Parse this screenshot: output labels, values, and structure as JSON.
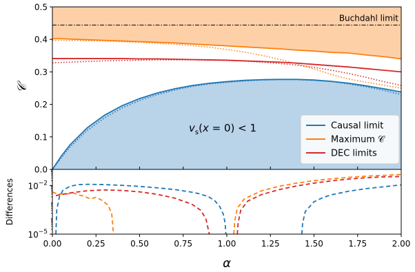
{
  "chart_data": [
    {
      "type": "area",
      "panel": "top",
      "xlabel": "",
      "ylabel": "𝒞",
      "xlim": [
        0,
        2
      ],
      "ylim": [
        0,
        0.5
      ],
      "yticks": [
        "0.0",
        "0.1",
        "0.2",
        "0.3",
        "0.4",
        "0.5"
      ],
      "reference_line": {
        "label": "Buchdahl limit",
        "value": 0.444
      },
      "annotation": "v_s(x = 0) < 1",
      "legend": {
        "placement": "lower-right",
        "entries": [
          {
            "label": "Causal limit",
            "color": "#1f77b4"
          },
          {
            "label": "Maximum 𝒞",
            "color": "#ff7f0e"
          },
          {
            "label": "DEC limits",
            "color": "#d62728"
          }
        ]
      },
      "fills": [
        {
          "between": [
            "Maximum solid",
            0.5
          ],
          "color": "#fdd0a8"
        },
        {
          "between": [
            0,
            "Causal solid"
          ],
          "color": "#b9d3e9"
        }
      ],
      "x": [
        0,
        0.05,
        0.1,
        0.2,
        0.3,
        0.4,
        0.5,
        0.6,
        0.7,
        0.8,
        0.9,
        1.0,
        1.1,
        1.2,
        1.3,
        1.4,
        1.5,
        1.6,
        1.7,
        1.8,
        1.9,
        2.0
      ],
      "series": [
        {
          "key": "causal-solid",
          "color": "#1f77b4",
          "style": "solid",
          "values": [
            0,
            0.04,
            0.075,
            0.128,
            0.167,
            0.196,
            0.218,
            0.235,
            0.248,
            0.258,
            0.265,
            0.27,
            0.274,
            0.276,
            0.277,
            0.277,
            0.275,
            0.271,
            0.265,
            0.257,
            0.248,
            0.238
          ]
        },
        {
          "key": "causal-dotted",
          "color": "#1f77b4",
          "style": "dotted",
          "values": [
            0,
            0.035,
            0.068,
            0.12,
            0.159,
            0.189,
            0.212,
            0.23,
            0.244,
            0.255,
            0.263,
            0.268,
            0.272,
            0.275,
            0.276,
            0.276,
            0.274,
            0.27,
            0.263,
            0.254,
            0.243,
            0.23
          ]
        },
        {
          "key": "max-solid",
          "color": "#ff7f0e",
          "style": "solid",
          "values": [
            0.402,
            0.402,
            0.401,
            0.399,
            0.397,
            0.395,
            0.393,
            0.391,
            0.389,
            0.386,
            0.383,
            0.38,
            0.377,
            0.374,
            0.371,
            0.367,
            0.364,
            0.36,
            0.358,
            0.352,
            0.347,
            0.34
          ]
        },
        {
          "key": "max-dotted",
          "color": "#ff7f0e",
          "style": "dotted",
          "values": [
            0.397,
            0.397,
            0.397,
            0.396,
            0.395,
            0.393,
            0.391,
            0.388,
            0.385,
            0.381,
            0.376,
            0.369,
            0.361,
            0.351,
            0.339,
            0.325,
            0.309,
            0.292,
            0.278,
            0.268,
            0.259,
            0.25
          ]
        },
        {
          "key": "dec-solid",
          "color": "#d62728",
          "style": "solid",
          "values": [
            0.341,
            0.341,
            0.341,
            0.341,
            0.341,
            0.341,
            0.34,
            0.34,
            0.339,
            0.338,
            0.337,
            0.336,
            0.334,
            0.332,
            0.33,
            0.327,
            0.323,
            0.319,
            0.315,
            0.31,
            0.305,
            0.3
          ]
        },
        {
          "key": "dec-dotted",
          "color": "#d62728",
          "style": "dotted",
          "values": [
            0.328,
            0.329,
            0.33,
            0.332,
            0.334,
            0.335,
            0.336,
            0.337,
            0.337,
            0.337,
            0.336,
            0.335,
            0.333,
            0.33,
            0.326,
            0.321,
            0.314,
            0.305,
            0.295,
            0.283,
            0.27,
            0.258
          ]
        }
      ]
    },
    {
      "type": "line",
      "panel": "bottom",
      "xlabel": "α",
      "ylabel": "Differences",
      "xlim": [
        0,
        2
      ],
      "ylim": [
        1e-05,
        0.1
      ],
      "yscale": "log",
      "xticks": [
        "0.00",
        "0.25",
        "0.50",
        "0.75",
        "1.00",
        "1.25",
        "1.50",
        "1.75",
        "2.00"
      ],
      "yticks": [
        {
          "value": 0.01,
          "base": "10",
          "exp": "−2"
        },
        {
          "value": 1e-05,
          "base": "10",
          "exp": "−5"
        }
      ],
      "series": [
        {
          "key": "causal-diff-a",
          "color": "#1f77b4",
          "style": "dashed",
          "x": [
            0.02,
            0.025,
            0.04,
            0.06,
            0.1,
            0.15,
            0.2,
            0.3,
            0.4,
            0.5,
            0.6,
            0.7,
            0.8,
            0.85,
            0.9,
            0.93,
            0.96,
            0.98,
            0.99,
            0.995
          ],
          "values": [
            1e-05,
            0.0003,
            0.002,
            0.005,
            0.009,
            0.0115,
            0.012,
            0.0115,
            0.0103,
            0.0089,
            0.0073,
            0.0057,
            0.0039,
            0.003,
            0.0019,
            0.0012,
            0.0005,
            0.00017,
            5e-05,
            1e-05
          ]
        },
        {
          "key": "causal-diff-b",
          "color": "#1f77b4",
          "style": "dashed",
          "x": [
            1.43,
            1.435,
            1.45,
            1.5,
            1.55,
            1.6,
            1.7,
            1.8,
            1.9,
            2.0
          ],
          "values": [
            1e-05,
            5e-05,
            0.00025,
            0.001,
            0.0018,
            0.0027,
            0.0045,
            0.0065,
            0.0085,
            0.011
          ]
        },
        {
          "key": "max-diff-a",
          "color": "#ff7f0e",
          "style": "dashed",
          "x": [
            0,
            0.03,
            0.08,
            0.12,
            0.15,
            0.18,
            0.2,
            0.22,
            0.25,
            0.28,
            0.3,
            0.32,
            0.34,
            0.345,
            0.35
          ],
          "values": [
            0.004,
            0.003,
            0.003,
            0.0035,
            0.0026,
            0.0023,
            0.0018,
            0.0015,
            0.0019,
            0.0013,
            0.0009,
            0.0006,
            0.00018,
            5e-05,
            1e-05
          ]
        },
        {
          "key": "max-diff-b",
          "color": "#ff7f0e",
          "style": "dashed",
          "x": [
            1.04,
            1.045,
            1.06,
            1.1,
            1.2,
            1.3,
            1.4,
            1.5,
            1.6,
            1.7,
            1.8,
            1.9,
            2.0
          ],
          "values": [
            1e-05,
            6e-05,
            0.0004,
            0.0015,
            0.0048,
            0.0091,
            0.0142,
            0.0202,
            0.0262,
            0.0323,
            0.0384,
            0.0427,
            0.048
          ]
        },
        {
          "key": "dec-diff-a",
          "color": "#d62728",
          "style": "dashed",
          "x": [
            0.02,
            0.1,
            0.2,
            0.3,
            0.4,
            0.5,
            0.6,
            0.7,
            0.8,
            0.85,
            0.88,
            0.9
          ],
          "values": [
            0.0024,
            0.0035,
            0.0048,
            0.0054,
            0.005,
            0.0041,
            0.0029,
            0.0017,
            0.0007,
            0.0003,
            9e-05,
            1e-05
          ]
        },
        {
          "key": "dec-diff-b",
          "color": "#d62728",
          "style": "dashed",
          "x": [
            1.06,
            1.065,
            1.08,
            1.12,
            1.2,
            1.3,
            1.4,
            1.5,
            1.6,
            1.7,
            1.8,
            1.9,
            2.0
          ],
          "values": [
            1e-05,
            5e-05,
            0.0003,
            0.0011,
            0.0028,
            0.0056,
            0.0095,
            0.0142,
            0.0196,
            0.0253,
            0.0306,
            0.0345,
            0.036
          ]
        }
      ]
    }
  ]
}
